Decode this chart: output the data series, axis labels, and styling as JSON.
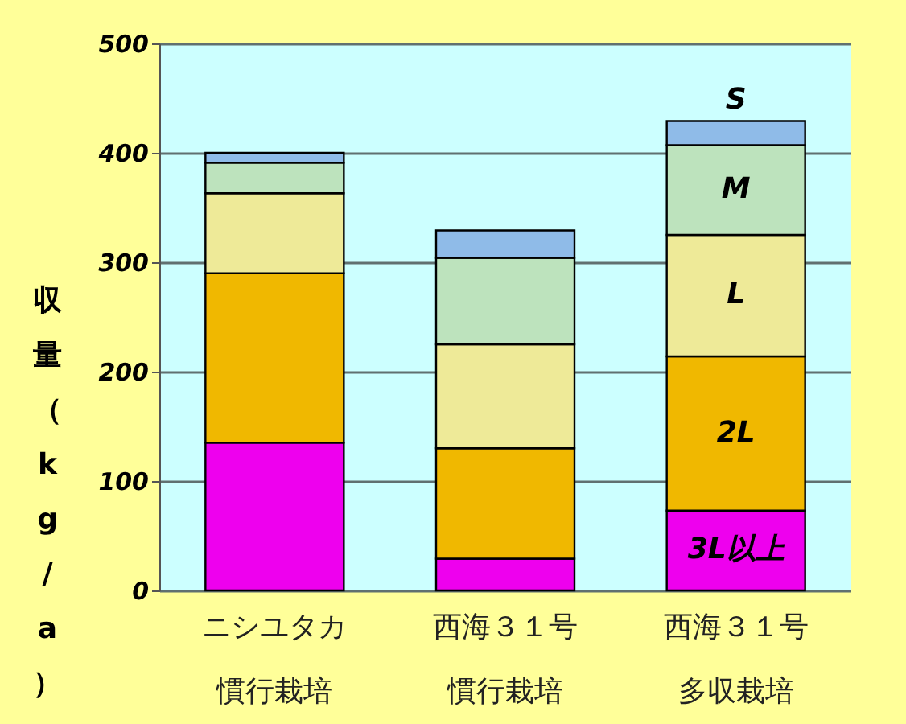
{
  "chart_data": {
    "type": "bar",
    "stacked": true,
    "ylabel": "収量（kg/a）",
    "categories": [
      "ニシユタカ慣行栽培",
      "西海３１号慣行栽培",
      "西海３１号多収栽培"
    ],
    "series": [
      {
        "name": "3L以上",
        "color": "#ee00ee",
        "values": [
          135,
          29,
          73
        ]
      },
      {
        "name": "2L",
        "color": "#f0b800",
        "values": [
          155,
          101,
          141
        ]
      },
      {
        "name": "L",
        "color": "#eeea98",
        "values": [
          73,
          95,
          111
        ]
      },
      {
        "name": "M",
        "color": "#bde3bd",
        "values": [
          28,
          79,
          82
        ]
      },
      {
        "name": "S",
        "color": "#8fbbe8",
        "values": [
          9,
          25,
          22
        ]
      }
    ],
    "ylim": [
      0,
      500
    ],
    "yticks": [
      0,
      100,
      200,
      300,
      400,
      500
    ],
    "grid": "y",
    "legend": false
  }
}
